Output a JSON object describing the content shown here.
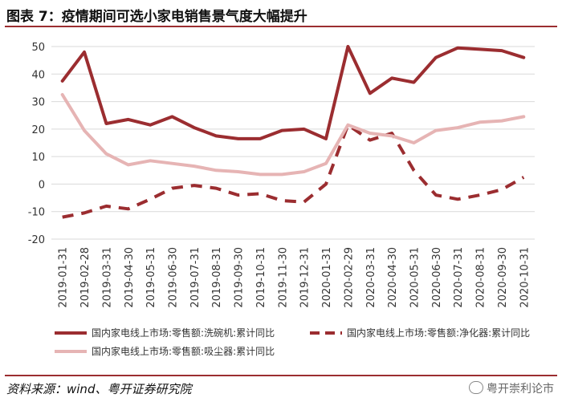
{
  "page": {
    "title": "图表 7：疫情期间可选小家电销售景气度大幅提升",
    "source": "资料来源：wind、粤开证券研究院",
    "watermark": "粤开崇利论市"
  },
  "chart_data": {
    "type": "line",
    "title": "",
    "xlabel": "",
    "ylabel": "",
    "ylim": [
      -20,
      50
    ],
    "yticks": [
      -20,
      -10,
      0,
      10,
      20,
      30,
      40,
      50
    ],
    "grid": true,
    "legend_position": "bottom",
    "categories": [
      "2019-01-31",
      "2019-02-28",
      "2019-03-31",
      "2019-04-30",
      "2019-05-31",
      "2019-06-30",
      "2019-07-31",
      "2019-08-31",
      "2019-09-30",
      "2019-10-31",
      "2019-11-30",
      "2019-12-31",
      "2020-01-31",
      "2020-02-29",
      "2020-03-31",
      "2020-04-30",
      "2020-05-31",
      "2020-06-30",
      "2020-07-31",
      "2020-08-31",
      "2020-09-30",
      "2020-10-31"
    ],
    "series": [
      {
        "name": "国内家电线上市场:零售额:洗碗机:累计同比",
        "color": "#9b2d30",
        "style": "solid",
        "values": [
          37.5,
          48,
          22,
          23.5,
          21.5,
          24.5,
          20.5,
          17.5,
          16.5,
          16.5,
          19.5,
          20,
          16.5,
          50,
          33,
          38.5,
          37,
          46,
          49.5,
          49,
          48.5,
          46
        ]
      },
      {
        "name": "国内家电线上市场:零售额:净化器:累计同比",
        "color": "#9b2d30",
        "style": "dashed",
        "values": [
          -12,
          -10.5,
          -8,
          -9,
          -5.5,
          -1.5,
          -0.5,
          -1.5,
          -4,
          -3.5,
          -6,
          -6.5,
          0,
          21.5,
          16,
          18.5,
          5,
          -4,
          -5.5,
          -4,
          -2,
          2.5
        ]
      },
      {
        "name": "国内家电线上市场:零售额:吸尘器:累计同比",
        "color": "#e6b4b4",
        "style": "solid",
        "values": [
          32.5,
          19.5,
          11,
          7,
          8.5,
          7.5,
          6.5,
          5,
          4.5,
          3.5,
          3.5,
          4.5,
          7.5,
          21.5,
          18.5,
          17.5,
          15,
          19.5,
          20.5,
          22.5,
          23,
          24.5
        ]
      }
    ]
  }
}
